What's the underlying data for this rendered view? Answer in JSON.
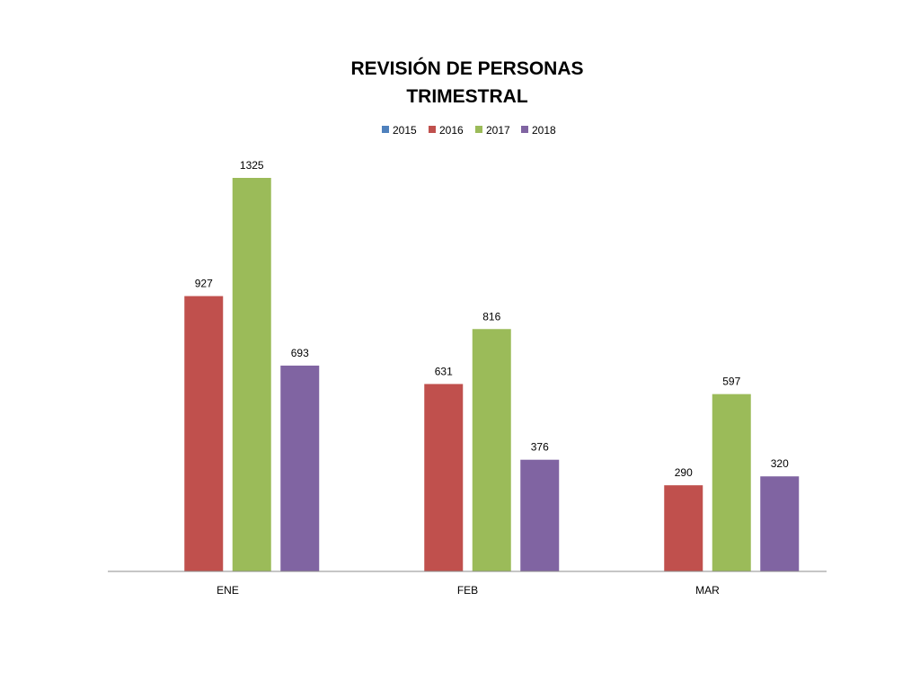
{
  "chart_data": {
    "type": "bar",
    "title_lines": [
      "REVISIÓN DE PERSONAS",
      "TRIMESTRAL"
    ],
    "categories": [
      "ENE",
      "FEB",
      "MAR"
    ],
    "series": [
      {
        "name": "2015",
        "color": "#4F81BD",
        "values": [
          null,
          null,
          null
        ]
      },
      {
        "name": "2016",
        "color": "#C0504D",
        "values": [
          927,
          631,
          290
        ]
      },
      {
        "name": "2017",
        "color": "#9BBB59",
        "values": [
          1325,
          816,
          597
        ]
      },
      {
        "name": "2018",
        "color": "#8064A2",
        "values": [
          693,
          376,
          320
        ]
      }
    ],
    "ylim": [
      0,
      1325
    ],
    "grid": false,
    "legend_position": "top",
    "data_labels": true
  }
}
